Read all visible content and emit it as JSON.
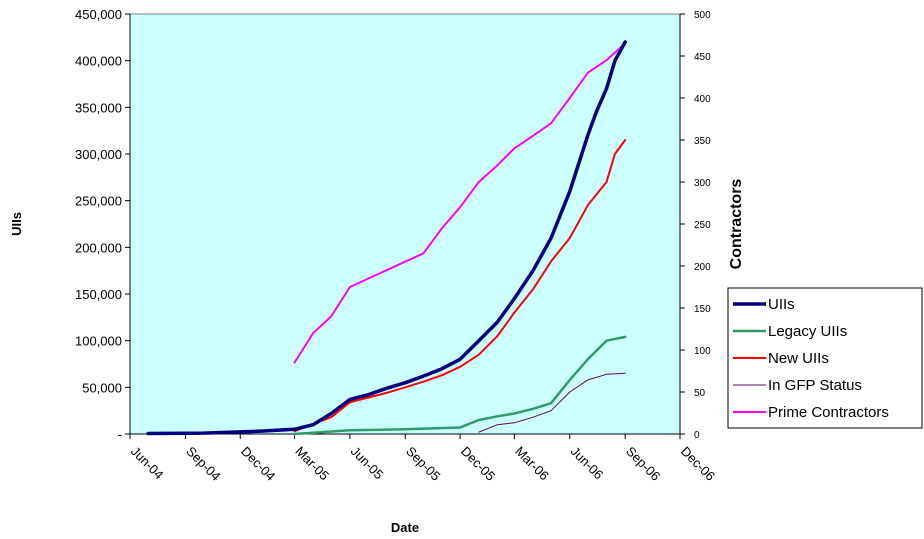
{
  "chart_data": {
    "type": "line",
    "xlabel": "Date",
    "ylabel": "UIIs",
    "y2label": "Contractors",
    "x_tick_labels": [
      "Jun-04",
      "Sep-04",
      "Dec-04",
      "Mar-05",
      "Jun-05",
      "Sep-05",
      "Dec-05",
      "Mar-06",
      "Jun-06",
      "Sep-06",
      "Dec-06"
    ],
    "x_ticks": [
      "2004-06-01",
      "2004-09-01",
      "2004-12-01",
      "2005-03-01",
      "2005-06-01",
      "2005-09-01",
      "2005-12-01",
      "2006-03-01",
      "2006-06-01",
      "2006-09-01",
      "2006-12-01"
    ],
    "xlim": [
      "2004-06-01",
      "2006-12-01"
    ],
    "ylim": [
      0,
      450000
    ],
    "y_tick_labels": [
      "-",
      "50,000",
      "100,000",
      "150,000",
      "200,000",
      "250,000",
      "300,000",
      "350,000",
      "400,000",
      "450,000"
    ],
    "y2lim": [
      0,
      500
    ],
    "y2_tick_labels": [
      "0",
      "50",
      "100",
      "150",
      "200",
      "250",
      "300",
      "350",
      "400",
      "450",
      "500"
    ],
    "plot_background": "#ccffff",
    "grid": false,
    "legend_position": "right",
    "series": [
      {
        "name": "UIIs",
        "axis": "left",
        "color": "#000080",
        "width": 3.5,
        "points": [
          [
            "2004-07-01",
            500
          ],
          [
            "2004-10-01",
            1000
          ],
          [
            "2005-01-01",
            3000
          ],
          [
            "2005-03-01",
            5000
          ],
          [
            "2005-04-01",
            10000
          ],
          [
            "2005-05-01",
            22000
          ],
          [
            "2005-06-01",
            37000
          ],
          [
            "2005-07-01",
            42000
          ],
          [
            "2005-08-01",
            49000
          ],
          [
            "2005-09-01",
            55000
          ],
          [
            "2005-10-01",
            62000
          ],
          [
            "2005-11-01",
            70000
          ],
          [
            "2005-12-01",
            80000
          ],
          [
            "2006-01-01",
            100000
          ],
          [
            "2006-02-01",
            120000
          ],
          [
            "2006-03-01",
            145000
          ],
          [
            "2006-04-01",
            175000
          ],
          [
            "2006-05-01",
            210000
          ],
          [
            "2006-06-01",
            260000
          ],
          [
            "2006-07-01",
            320000
          ],
          [
            "2006-07-15",
            345000
          ],
          [
            "2006-08-01",
            370000
          ],
          [
            "2006-08-15",
            400000
          ],
          [
            "2006-09-01",
            420000
          ]
        ]
      },
      {
        "name": "Legacy UIIs",
        "axis": "left",
        "color": "#339966",
        "width": 2.5,
        "points": [
          [
            "2005-03-01",
            0
          ],
          [
            "2005-06-01",
            4000
          ],
          [
            "2005-09-01",
            5000
          ],
          [
            "2005-12-01",
            7000
          ],
          [
            "2006-01-01",
            15000
          ],
          [
            "2006-02-01",
            19000
          ],
          [
            "2006-03-01",
            22000
          ],
          [
            "2006-04-01",
            27000
          ],
          [
            "2006-05-01",
            33000
          ],
          [
            "2006-06-01",
            58000
          ],
          [
            "2006-07-01",
            80000
          ],
          [
            "2006-08-01",
            100000
          ],
          [
            "2006-09-01",
            104000
          ]
        ]
      },
      {
        "name": "New UIIs",
        "axis": "left",
        "color": "#ff0000",
        "width": 2,
        "points": [
          [
            "2005-03-01",
            3000
          ],
          [
            "2005-05-01",
            18000
          ],
          [
            "2005-06-01",
            34000
          ],
          [
            "2005-07-01",
            39000
          ],
          [
            "2005-08-01",
            44000
          ],
          [
            "2005-09-01",
            50000
          ],
          [
            "2005-10-01",
            56000
          ],
          [
            "2005-11-01",
            63000
          ],
          [
            "2005-12-01",
            72000
          ],
          [
            "2006-01-01",
            85000
          ],
          [
            "2006-02-01",
            105000
          ],
          [
            "2006-03-01",
            130000
          ],
          [
            "2006-04-01",
            155000
          ],
          [
            "2006-05-01",
            185000
          ],
          [
            "2006-06-01",
            210000
          ],
          [
            "2006-07-01",
            245000
          ],
          [
            "2006-08-01",
            270000
          ],
          [
            "2006-08-15",
            300000
          ],
          [
            "2006-09-01",
            315000
          ]
        ]
      },
      {
        "name": "In GFP Status",
        "axis": "left",
        "color": "#660066",
        "width": 1,
        "points": [
          [
            "2006-01-01",
            2000
          ],
          [
            "2006-02-01",
            10000
          ],
          [
            "2006-03-01",
            12000
          ],
          [
            "2006-04-01",
            18000
          ],
          [
            "2006-05-01",
            25000
          ],
          [
            "2006-06-01",
            45000
          ],
          [
            "2006-07-01",
            58000
          ],
          [
            "2006-08-01",
            64000
          ],
          [
            "2006-09-01",
            65000
          ]
        ]
      },
      {
        "name": "Prime Contractors",
        "axis": "right",
        "color": "#ff00ff",
        "width": 2,
        "points": [
          [
            "2005-03-01",
            85
          ],
          [
            "2005-04-01",
            120
          ],
          [
            "2005-05-01",
            140
          ],
          [
            "2005-06-01",
            175
          ],
          [
            "2005-08-01",
            195
          ],
          [
            "2005-10-01",
            215
          ],
          [
            "2005-11-01",
            245
          ],
          [
            "2005-12-01",
            270
          ],
          [
            "2006-01-01",
            300
          ],
          [
            "2006-02-01",
            320
          ],
          [
            "2006-03-01",
            340
          ],
          [
            "2006-04-01",
            355
          ],
          [
            "2006-05-01",
            370
          ],
          [
            "2006-06-01",
            400
          ],
          [
            "2006-07-01",
            430
          ],
          [
            "2006-08-01",
            445
          ],
          [
            "2006-09-01",
            465
          ]
        ]
      }
    ]
  }
}
